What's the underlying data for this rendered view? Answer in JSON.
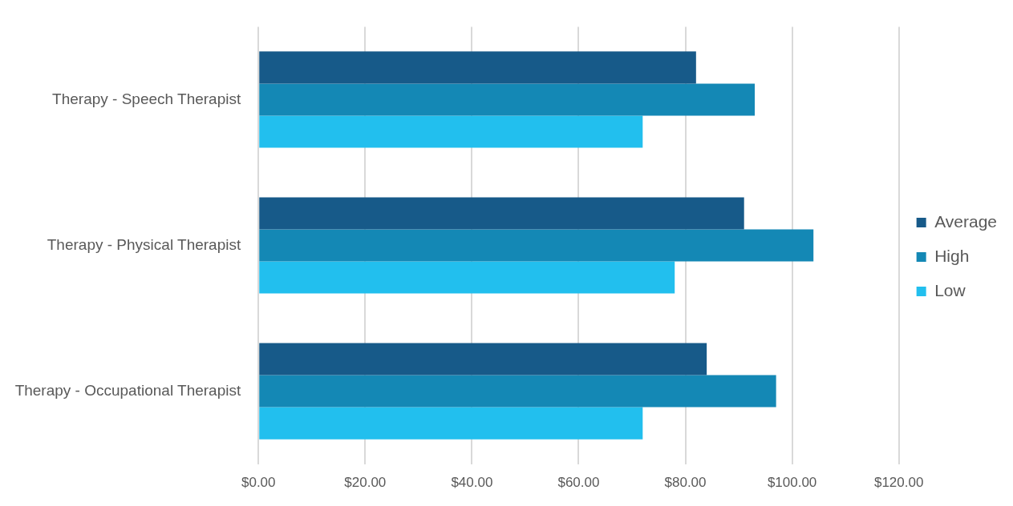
{
  "chart_data": {
    "type": "bar",
    "orientation": "horizontal",
    "categories": [
      "Therapy - Speech Therapist",
      "Therapy - Physical Therapist",
      "Therapy - Occupational Therapist"
    ],
    "series": [
      {
        "name": "Average",
        "color": "#175a89",
        "values": [
          82,
          91,
          84
        ]
      },
      {
        "name": "High",
        "color": "#1488b5",
        "values": [
          93,
          104,
          97
        ]
      },
      {
        "name": "Low",
        "color": "#22bfee",
        "values": [
          72,
          78,
          72
        ]
      }
    ],
    "xlim": [
      0,
      120
    ],
    "xticks": [
      {
        "value": 0,
        "label": "$0.00"
      },
      {
        "value": 20,
        "label": "$20.00"
      },
      {
        "value": 40,
        "label": "$40.00"
      },
      {
        "value": 60,
        "label": "$60.00"
      },
      {
        "value": 80,
        "label": "$80.00"
      },
      {
        "value": 100,
        "label": "$100.00"
      },
      {
        "value": 120,
        "label": "$120.00"
      }
    ],
    "grid": "x",
    "legend": "right"
  }
}
